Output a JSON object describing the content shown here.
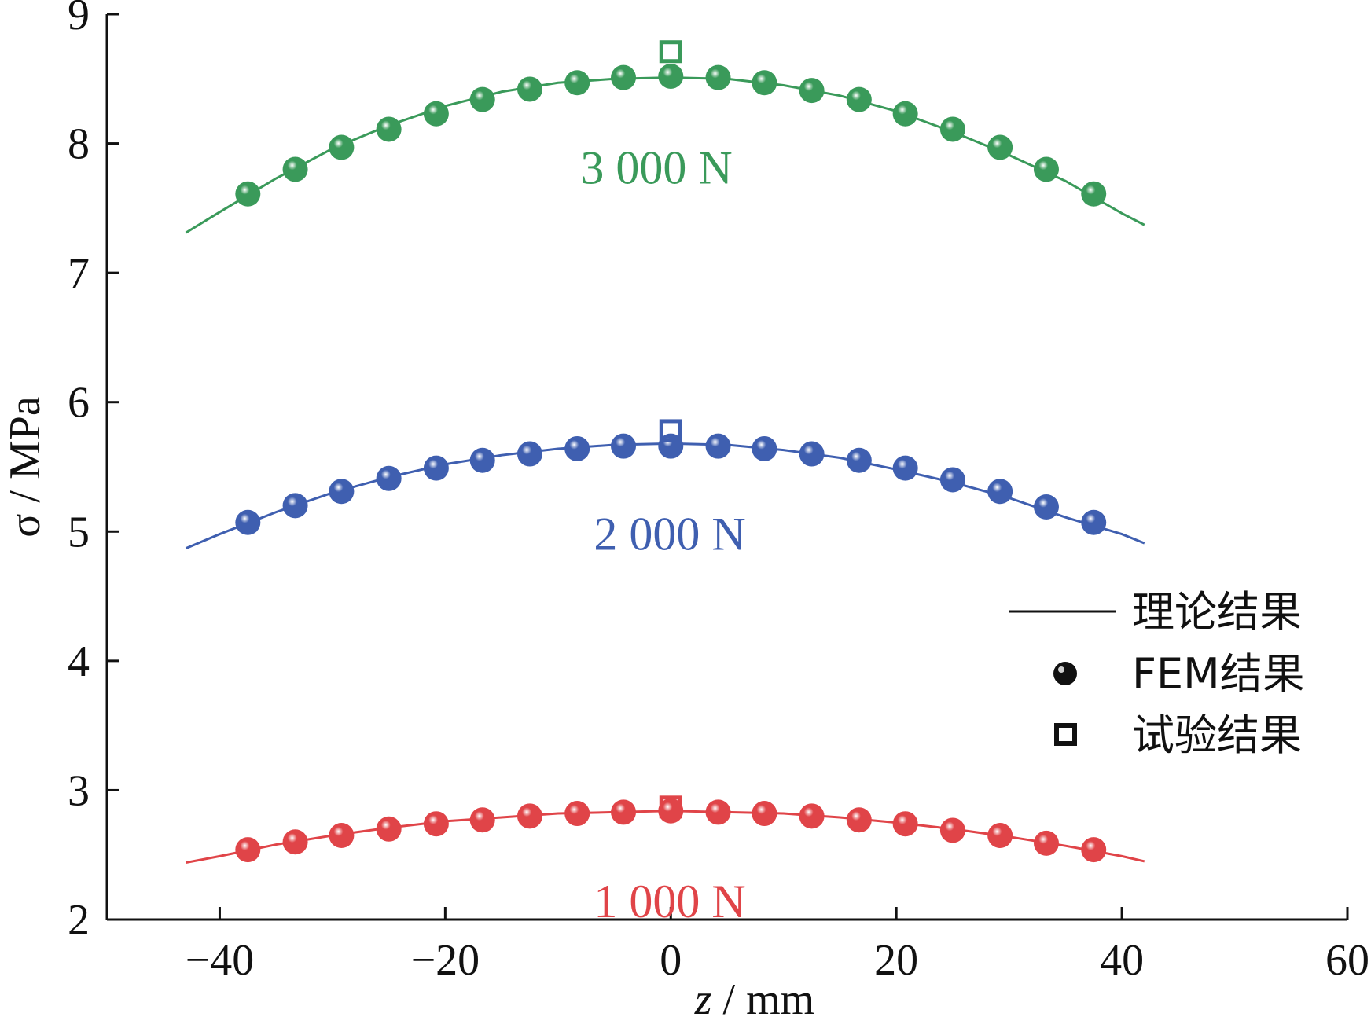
{
  "chart_data": {
    "type": "line",
    "xlabel_italic": "z",
    "xlabel_rest": " / mm",
    "ylabel": "σ / MPa",
    "xlim": [
      -50,
      60
    ],
    "ylim": [
      2,
      9
    ],
    "x_ticks": [
      -40,
      -20,
      0,
      20,
      40,
      60
    ],
    "x_tick_labels": [
      "−40",
      "−20",
      "0",
      "20",
      "40",
      "60"
    ],
    "y_ticks": [
      2,
      3,
      4,
      5,
      6,
      7,
      8,
      9
    ],
    "y_tick_labels": [
      "2",
      "3",
      "4",
      "5",
      "6",
      "7",
      "8",
      "9"
    ],
    "legend": {
      "position": "right-middle",
      "entries": [
        {
          "marker": "line",
          "label": "理论结果"
        },
        {
          "marker": "sphere",
          "label": "FEM结果"
        },
        {
          "marker": "square",
          "label": "试验结果"
        }
      ]
    },
    "series": [
      {
        "name": "3 000 N",
        "color": "#3a9a5a",
        "theory": {
          "x": [
            -43,
            -40,
            -35,
            -30,
            -25,
            -20,
            -15,
            -10,
            -5,
            0,
            5,
            10,
            15,
            20,
            25,
            30,
            35,
            40,
            42
          ],
          "y": [
            7.31,
            7.47,
            7.73,
            7.96,
            8.14,
            8.29,
            8.4,
            8.47,
            8.5,
            8.51,
            8.5,
            8.45,
            8.37,
            8.25,
            8.09,
            7.91,
            7.71,
            7.46,
            7.37
          ]
        },
        "fem": {
          "x": [
            -37.5,
            -33.3,
            -29.2,
            -25.0,
            -20.8,
            -16.7,
            -12.5,
            -8.3,
            -4.2,
            0,
            4.2,
            8.3,
            12.5,
            16.7,
            20.8,
            25.0,
            29.2,
            33.3,
            37.5
          ],
          "y": [
            7.61,
            7.8,
            7.97,
            8.11,
            8.23,
            8.34,
            8.42,
            8.47,
            8.51,
            8.52,
            8.51,
            8.47,
            8.41,
            8.34,
            8.23,
            8.11,
            7.97,
            7.8,
            7.61
          ]
        },
        "test": {
          "x": [
            0
          ],
          "y": [
            8.71
          ]
        }
      },
      {
        "name": "2 000 N",
        "color": "#3f5fb0",
        "theory": {
          "x": [
            -43,
            -40,
            -35,
            -30,
            -25,
            -20,
            -15,
            -10,
            -5,
            0,
            5,
            10,
            15,
            20,
            25,
            30,
            35,
            40,
            42
          ],
          "y": [
            4.87,
            4.98,
            5.15,
            5.3,
            5.42,
            5.52,
            5.59,
            5.64,
            5.67,
            5.68,
            5.67,
            5.63,
            5.57,
            5.48,
            5.38,
            5.26,
            5.11,
            4.98,
            4.91
          ]
        },
        "fem": {
          "x": [
            -37.5,
            -33.3,
            -29.2,
            -25.0,
            -20.8,
            -16.7,
            -12.5,
            -8.3,
            -4.2,
            0,
            4.2,
            8.3,
            12.5,
            16.7,
            20.8,
            25.0,
            29.2,
            33.3,
            37.5
          ],
          "y": [
            5.07,
            5.2,
            5.31,
            5.41,
            5.49,
            5.55,
            5.6,
            5.64,
            5.66,
            5.66,
            5.66,
            5.64,
            5.6,
            5.55,
            5.49,
            5.4,
            5.31,
            5.19,
            5.07
          ]
        },
        "test": {
          "x": [
            0
          ],
          "y": [
            5.78
          ]
        }
      },
      {
        "name": "1 000 N",
        "color": "#e04448",
        "theory": {
          "x": [
            -43,
            -40,
            -35,
            -30,
            -25,
            -20,
            -15,
            -10,
            -5,
            0,
            5,
            10,
            15,
            20,
            25,
            30,
            35,
            40,
            42
          ],
          "y": [
            2.44,
            2.49,
            2.58,
            2.65,
            2.71,
            2.76,
            2.79,
            2.82,
            2.83,
            2.84,
            2.83,
            2.82,
            2.79,
            2.75,
            2.7,
            2.64,
            2.57,
            2.49,
            2.45
          ]
        },
        "fem": {
          "x": [
            -37.5,
            -33.3,
            -29.2,
            -25.0,
            -20.8,
            -16.7,
            -12.5,
            -8.3,
            -4.2,
            0,
            4.2,
            8.3,
            12.5,
            16.7,
            20.8,
            25.0,
            29.2,
            33.3,
            37.5
          ],
          "y": [
            2.54,
            2.6,
            2.65,
            2.7,
            2.74,
            2.77,
            2.8,
            2.82,
            2.83,
            2.84,
            2.83,
            2.82,
            2.8,
            2.77,
            2.74,
            2.69,
            2.65,
            2.59,
            2.54
          ]
        },
        "test": {
          "x": [
            0
          ],
          "y": [
            2.87
          ]
        }
      }
    ]
  }
}
